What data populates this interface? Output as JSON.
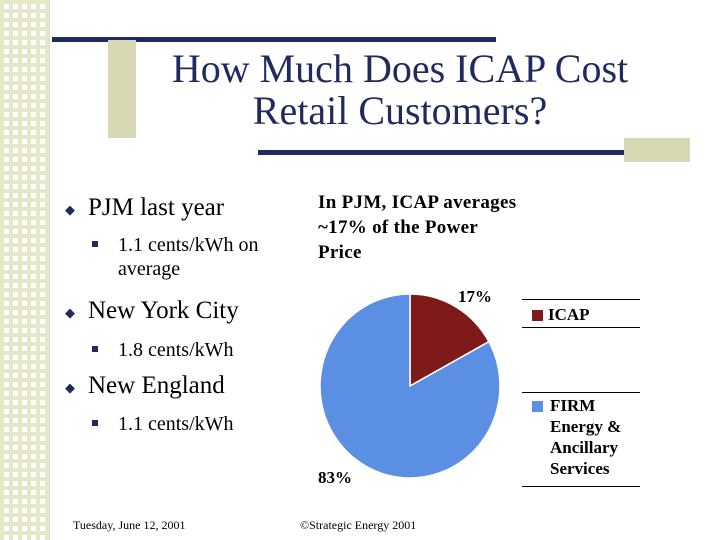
{
  "title": "How Much Does ICAP Cost\nRetail Customers?",
  "bullets": [
    {
      "text": "PJM last year",
      "sub": [
        "1.1 cents/kWh on\naverage"
      ]
    },
    {
      "text": "New York City",
      "sub": [
        "1.8 cents/kWh"
      ]
    },
    {
      "text": "New England",
      "sub": [
        "1.1 cents/kWh"
      ]
    }
  ],
  "callout": "In PJM, ICAP averages\n~17% of the Power\nPrice",
  "chart_data": {
    "type": "pie",
    "slices": [
      {
        "label": "ICAP",
        "value": 17,
        "data_label": "17%",
        "color": "#7f1a1a"
      },
      {
        "label": "FIRM\nEnergy &\nAncillary\nServices",
        "value": 83,
        "data_label": "83%",
        "color": "#5b8fe3"
      }
    ],
    "legend_placement": "right"
  },
  "footer": {
    "date": "Tuesday, June 12, 2001",
    "copyright": "©Strategic Energy 2001"
  },
  "colors": {
    "accent": "#1f2b5e",
    "accent_light": "#d9d8b4"
  }
}
